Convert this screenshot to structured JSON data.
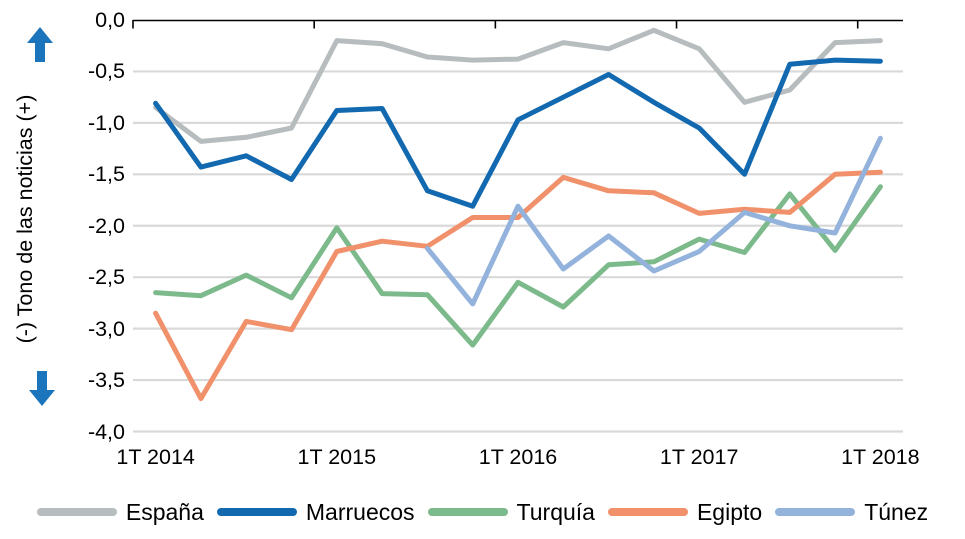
{
  "chart_data": {
    "type": "line",
    "title": "",
    "ylabel": "(-) Tono de las noticias (+)",
    "xlabel": "",
    "categories": [
      "1T 2014",
      "2T 2014",
      "3T 2014",
      "4T 2014",
      "1T 2015",
      "2T 2015",
      "3T 2015",
      "4T 2015",
      "1T 2016",
      "2T 2016",
      "3T 2016",
      "4T 2016",
      "1T 2017",
      "2T 2017",
      "3T 2017",
      "4T 2017",
      "1T 2018"
    ],
    "xtick_labels": [
      "1T 2014",
      "1T 2015",
      "1T 2016",
      "1T 2017",
      "1T 2018"
    ],
    "ytick_labels": [
      "0,0",
      "-0,5",
      "-1,0",
      "-1,5",
      "-2,0",
      "-2,5",
      "-3,0",
      "-3,5",
      "-4,0"
    ],
    "ylim": [
      -4.0,
      0.0
    ],
    "grid": "horizontal",
    "legend_position": "bottom",
    "axis_color": "#000000",
    "gridline_color": "#d9d9d9",
    "arrow_color": "#1b75bc",
    "icons": [
      "arrow-up-icon",
      "arrow-down-icon"
    ],
    "series": [
      {
        "name": "España",
        "color": "#b7bcbf",
        "values": [
          -0.85,
          -1.18,
          -1.14,
          -1.05,
          -0.2,
          -0.23,
          -0.36,
          -0.39,
          -0.38,
          -0.22,
          -0.28,
          -0.1,
          -0.28,
          -0.8,
          -0.68,
          -0.22,
          -0.2
        ]
      },
      {
        "name": "Marruecos",
        "color": "#1269b0",
        "values": [
          -0.81,
          -1.43,
          -1.32,
          -1.55,
          -0.88,
          -0.86,
          -1.66,
          -1.81,
          -0.97,
          -0.75,
          -0.53,
          -0.8,
          -1.05,
          -1.5,
          -0.43,
          -0.39,
          -0.4
        ]
      },
      {
        "name": "Turquía",
        "color": "#7cba8c",
        "values": [
          -2.65,
          -2.68,
          -2.48,
          -2.7,
          -2.02,
          -2.66,
          -2.67,
          -3.16,
          -2.55,
          -2.79,
          -2.38,
          -2.35,
          -2.13,
          -2.26,
          -1.69,
          -2.24,
          -1.62
        ]
      },
      {
        "name": "Egipto",
        "color": "#f0916b",
        "values": [
          -2.85,
          -3.68,
          -2.93,
          -3.01,
          -2.25,
          -2.15,
          -2.2,
          -1.92,
          -1.92,
          -1.53,
          -1.66,
          -1.68,
          -1.88,
          -1.84,
          -1.87,
          -1.5,
          -1.48
        ]
      },
      {
        "name": "Túnez",
        "color": "#93b2dc",
        "values": [
          null,
          null,
          null,
          null,
          null,
          null,
          -2.22,
          -2.76,
          -1.81,
          -2.42,
          -2.1,
          -2.44,
          -2.25,
          -1.87,
          -2.0,
          -2.07,
          -1.15
        ]
      }
    ]
  }
}
